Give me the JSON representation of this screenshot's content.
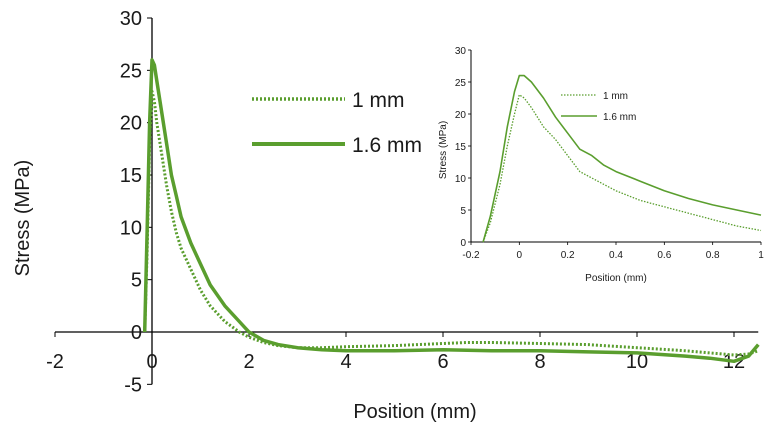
{
  "chart_data": [
    {
      "type": "line",
      "title": "",
      "xlabel": "Position (mm)",
      "ylabel": "Stress (MPa)",
      "xlim": [
        -2,
        12.5
      ],
      "ylim": [
        -5,
        30
      ],
      "x_ticks": [
        "-2",
        "0",
        "2",
        "4",
        "6",
        "8",
        "10",
        "12"
      ],
      "y_ticks": [
        "-5",
        "0",
        "5",
        "10",
        "15",
        "20",
        "25",
        "30"
      ],
      "grid": false,
      "legend": "upper-center",
      "colors": {
        "series": "#5a9e2e",
        "axis": "#000000"
      },
      "series": [
        {
          "name": "1 mm",
          "style": "dotted",
          "x": [
            -0.15,
            -0.1,
            -0.05,
            0,
            0.05,
            0.1,
            0.2,
            0.3,
            0.4,
            0.5,
            0.6,
            0.8,
            1.0,
            1.2,
            1.5,
            1.8,
            2.0,
            2.3,
            2.6,
            3.0,
            3.5,
            4.0,
            5.0,
            6.0,
            6.5,
            7.0,
            8.0,
            9.0,
            10.0,
            11.0,
            11.5,
            12.0,
            12.3,
            12.5
          ],
          "y": [
            0,
            8,
            18,
            23,
            22,
            20,
            17,
            14,
            11.5,
            9.5,
            8,
            6,
            4,
            2.5,
            1,
            0,
            -0.5,
            -1,
            -1.3,
            -1.5,
            -1.5,
            -1.4,
            -1.3,
            -1.1,
            -1,
            -1,
            -1.1,
            -1.2,
            -1.5,
            -1.8,
            -2,
            -2.2,
            -2.1,
            -1.8
          ]
        },
        {
          "name": "1.6 mm",
          "style": "solid",
          "x": [
            -0.15,
            -0.1,
            -0.05,
            0,
            0.05,
            0.1,
            0.2,
            0.3,
            0.4,
            0.5,
            0.6,
            0.8,
            1.0,
            1.2,
            1.5,
            1.8,
            2.0,
            2.3,
            2.6,
            3.0,
            3.5,
            4.0,
            5.0,
            6.0,
            7.0,
            8.0,
            9.0,
            10.0,
            11.0,
            11.5,
            12.0,
            12.3,
            12.5
          ],
          "y": [
            0,
            10,
            20,
            26,
            25.5,
            24,
            21,
            18,
            15,
            13,
            11,
            8.5,
            6.5,
            4.5,
            2.5,
            1,
            0,
            -0.8,
            -1.2,
            -1.5,
            -1.7,
            -1.8,
            -1.8,
            -1.7,
            -1.8,
            -1.8,
            -1.9,
            -2,
            -2.3,
            -2.5,
            -2.8,
            -2.3,
            -1.2
          ]
        }
      ]
    },
    {
      "type": "line",
      "title": "",
      "xlabel": "Position (mm)",
      "ylabel": "Stress (MPa)",
      "xlim": [
        -0.2,
        1
      ],
      "ylim": [
        0,
        30
      ],
      "x_ticks": [
        "-0.2",
        "0",
        "0.2",
        "0.4",
        "0.6",
        "0.8",
        "1"
      ],
      "y_ticks": [
        "0",
        "5",
        "10",
        "15",
        "20",
        "25",
        "30"
      ],
      "grid": false,
      "legend": "top-center",
      "series": [
        {
          "name": "1 mm",
          "style": "dotted",
          "x": [
            -0.15,
            -0.12,
            -0.08,
            -0.05,
            -0.02,
            0,
            0.02,
            0.05,
            0.1,
            0.15,
            0.2,
            0.25,
            0.3,
            0.35,
            0.4,
            0.5,
            0.6,
            0.7,
            0.8,
            0.9,
            1.0
          ],
          "y": [
            0,
            3,
            9,
            15,
            20,
            23,
            22.5,
            21,
            18,
            16,
            13.5,
            11,
            10,
            9,
            8,
            6.5,
            5.5,
            4.5,
            3.5,
            2.5,
            1.8
          ]
        },
        {
          "name": "1.6 mm",
          "style": "solid",
          "x": [
            -0.15,
            -0.12,
            -0.08,
            -0.05,
            -0.02,
            0,
            0.02,
            0.05,
            0.1,
            0.15,
            0.2,
            0.25,
            0.3,
            0.35,
            0.4,
            0.5,
            0.6,
            0.7,
            0.8,
            0.9,
            1.0
          ],
          "y": [
            0,
            4,
            11,
            18,
            23.5,
            26,
            26,
            25,
            22.5,
            19.5,
            17,
            14.5,
            13.5,
            12,
            11,
            9.5,
            8,
            6.8,
            5.8,
            5,
            4.2
          ]
        }
      ]
    }
  ]
}
